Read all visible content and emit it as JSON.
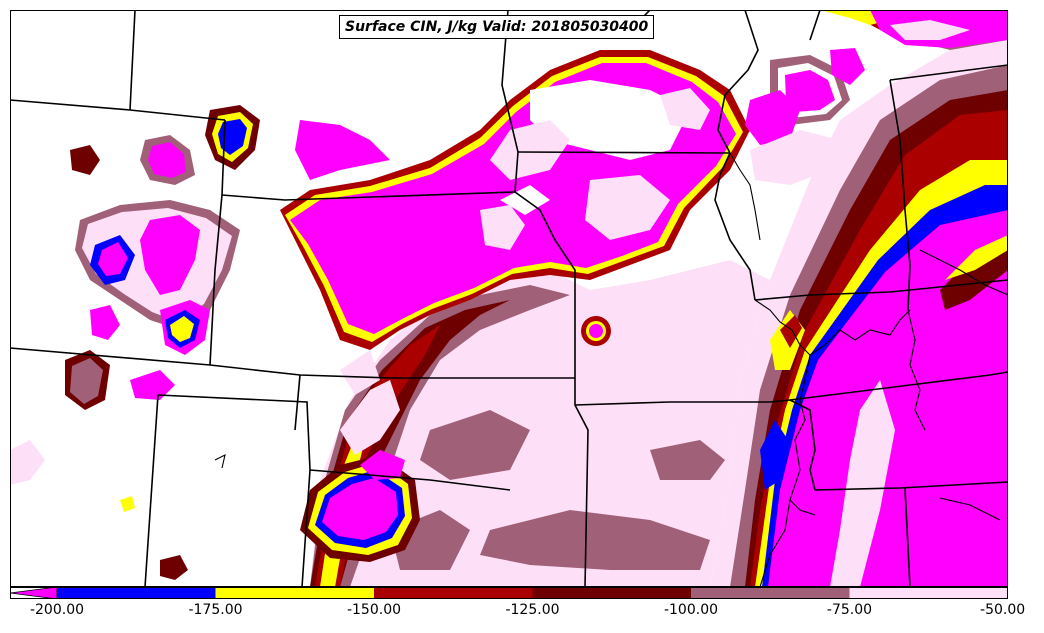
{
  "title": "Surface CIN, J/kg Valid: 201805030400",
  "colorbar": {
    "extend": "min",
    "colors": [
      "#ff00ff",
      "#0000ff",
      "#ffff00",
      "#aa0000",
      "#6e0000",
      "#a06078",
      "#fde0f8",
      "#ffffff"
    ],
    "bins": [
      {
        "from": -200,
        "to": -175,
        "color": "#0000ff"
      },
      {
        "from": -175,
        "to": -150,
        "color": "#ffff00"
      },
      {
        "from": -150,
        "to": -125,
        "color": "#aa0000"
      },
      {
        "from": -125,
        "to": -100,
        "color": "#6e0000"
      },
      {
        "from": -100,
        "to": -75,
        "color": "#a06078"
      },
      {
        "from": -75,
        "to": -50,
        "color": "#fde0f8"
      }
    ],
    "under_color": "#ff00ff",
    "tick_labels": [
      "-200.00",
      "-175.00",
      "-150.00",
      "-125.00",
      "-100.00",
      "-75.00",
      "-50.00"
    ]
  }
}
